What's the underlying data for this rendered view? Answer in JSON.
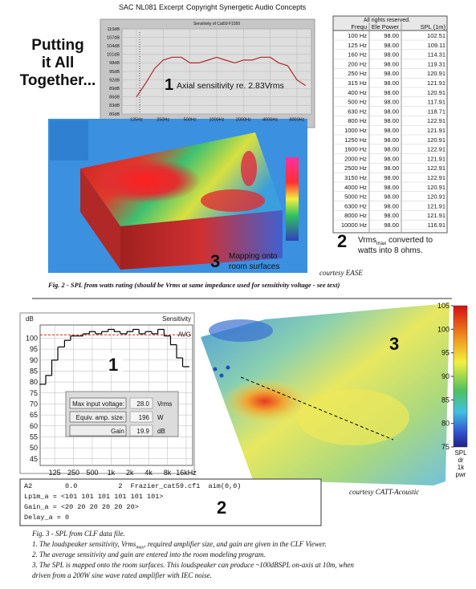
{
  "header": {
    "left": "SAC NL081 Excerpt",
    "right": "Copyright Synergetic Audio Concepts"
  },
  "headline": [
    "Putting",
    "it All",
    "Together..."
  ],
  "fig2": {
    "sensitivity_chart": {
      "type": "line",
      "title": "Sensitivity of Cat59 F1550",
      "log_x": true,
      "grid": true,
      "color": "#b0282c",
      "x": [
        125,
        160,
        200,
        250,
        315,
        400,
        500,
        630,
        800,
        1000,
        1250,
        1600,
        2000,
        2500,
        3150,
        4000,
        5000,
        6300,
        8000,
        10000
      ],
      "values": [
        86,
        91,
        96,
        99,
        100,
        100,
        98,
        98,
        99,
        100,
        99,
        98,
        99,
        99,
        100,
        100,
        98,
        97,
        92,
        90
      ],
      "xlim": [
        86,
        11650
      ],
      "xticks": [
        {
          "value": 125,
          "label": "125Hz"
        },
        {
          "value": 250,
          "label": "250Hz"
        },
        {
          "value": 500,
          "label": "500Hz"
        },
        {
          "value": 1000,
          "label": "1000Hz"
        },
        {
          "value": 2000,
          "label": "2000Hz"
        },
        {
          "value": 4000,
          "label": "4000Hz"
        },
        {
          "value": 8000,
          "label": "8000Hz"
        }
      ],
      "ylim": [
        80,
        110
      ],
      "yticks": [
        {
          "value": 80,
          "label": "80dB"
        },
        {
          "value": 83,
          "label": "83dB"
        },
        {
          "value": 86,
          "label": "86dB"
        },
        {
          "value": 89,
          "label": "89dB"
        },
        {
          "value": 92,
          "label": "92dB"
        },
        {
          "value": 95,
          "label": "95dB"
        },
        {
          "value": 98,
          "label": "98dB"
        },
        {
          "value": 101,
          "label": "101dB"
        },
        {
          "value": 104,
          "label": "104dB"
        },
        {
          "value": 107,
          "label": "107dB"
        },
        {
          "value": 110,
          "label": "110dB"
        }
      ],
      "annotation_number": "1",
      "annotation": "Axial sensitivity re. 2.83Vrms"
    },
    "table": {
      "note": "All rights reserved.",
      "columns": [
        "Frequ",
        "Ele Power",
        "SPL (1m)"
      ],
      "rows": [
        [
          "100 Hz",
          "98.00",
          "102.51"
        ],
        [
          "125 Hz",
          "98.00",
          "109.11"
        ],
        [
          "160 Hz",
          "98.00",
          "114.31"
        ],
        [
          "200 Hz",
          "98.00",
          "119.31"
        ],
        [
          "250 Hz",
          "98.00",
          "120.91"
        ],
        [
          "315 Hz",
          "98.00",
          "121.91"
        ],
        [
          "400 Hz",
          "98.00",
          "120.91"
        ],
        [
          "500 Hz",
          "98.00",
          "117.91"
        ],
        [
          "630 Hz",
          "98.00",
          "118.71"
        ],
        [
          "800 Hz",
          "98.00",
          "122.91"
        ],
        [
          "1000 Hz",
          "98.00",
          "121.91"
        ],
        [
          "1250 Hz",
          "98.00",
          "120.91"
        ],
        [
          "1600 Hz",
          "98.00",
          "122.91"
        ],
        [
          "2000 Hz",
          "98.00",
          "121.91"
        ],
        [
          "2500 Hz",
          "98.00",
          "122.91"
        ],
        [
          "3150 Hz",
          "98.00",
          "122.91"
        ],
        [
          "4000 Hz",
          "98.00",
          "120.91"
        ],
        [
          "5000 Hz",
          "98.00",
          "120.91"
        ],
        [
          "6300 Hz",
          "98.00",
          "121.91"
        ],
        [
          "8000 Hz",
          "98.00",
          "121.91"
        ],
        [
          "10000 Hz",
          "98.00",
          "116.91"
        ]
      ]
    },
    "note2": {
      "number": "2",
      "line1": "Vrms",
      "subscript": "max",
      "line1_end": " converted to",
      "line2": "watts into 8 ohms."
    },
    "note3": {
      "number": "3",
      "line1": "Mapping onto",
      "line2": "room surfaces"
    },
    "credit": "courtesy EASE",
    "caption": "Fig. 2 - SPL from watts rating (should be Vrms at same impedance used for sensitivity voltage - see text)"
  },
  "fig3": {
    "clf_chart": {
      "type": "line",
      "step": true,
      "log_x": true,
      "grid": true,
      "color": "#000000",
      "y_label": "dB",
      "title": "Sensitivity",
      "number": "1",
      "x": [
        80,
        100,
        125,
        160,
        200,
        250,
        315,
        400,
        500,
        630,
        800,
        1000,
        1250,
        1600,
        2000,
        2500,
        3150,
        4000,
        5000,
        6300,
        8000,
        10000,
        12500,
        16000
      ],
      "values": [
        79,
        83,
        90,
        96,
        99,
        101,
        101,
        102,
        103,
        102,
        103,
        104,
        103,
        102,
        103,
        104,
        102,
        103,
        102,
        104,
        101,
        97,
        91,
        87
      ],
      "xlim": [
        73,
        20300
      ],
      "xticks": [
        125,
        250,
        500,
        {
          "value": 1000,
          "label": "1k"
        },
        {
          "value": 2000,
          "label": "2k"
        },
        {
          "value": 4000,
          "label": "4k"
        },
        {
          "value": 8000,
          "label": "8k"
        },
        {
          "value": 16000,
          "label": "16kHz"
        }
      ],
      "ylim": [
        42,
        106
      ],
      "yticks": [
        45,
        50,
        55,
        60,
        65,
        70,
        75,
        80,
        85,
        90,
        95,
        100
      ],
      "reference": {
        "value": 101.5,
        "label": "AVG"
      }
    },
    "amp_panel": {
      "rows": [
        {
          "label": "Max input voltage:",
          "value": "28.0",
          "unit": "Vrms"
        },
        {
          "label": "Equiv. amp. size:",
          "value": "196",
          "unit": "W"
        },
        {
          "label": "Gain",
          "value": "19.9",
          "unit": "dB"
        }
      ]
    },
    "spl_map": {
      "number": "3",
      "credit": "courtesy CATT-Acoustic",
      "colorbar": {
        "lim": [
          75,
          105
        ],
        "ticks": [
          75,
          80,
          85,
          90,
          95,
          100,
          105
        ],
        "labels": [
          "SPL",
          "dr",
          "1k",
          "pwr"
        ]
      }
    },
    "code": {
      "number": "2",
      "lines": [
        "A2        0.0          2  Frazier_cat59.cf1  aim(0,0)",
        "Lp1m_a = <101 101 101 101 101 101>",
        "Gain_a = <20 20 20 20 20 20>",
        "Delay_a = 0"
      ]
    },
    "caption": {
      "title": "Fig. 3 - SPL from CLF data file.",
      "line1_start": "1. The loudspeaker sensitivity, Vrms",
      "line1_sub": "max",
      "line1_end": ", required amplifier size, and gain are given in the CLF Viewer.",
      "line2": "2. The average sensitivity and gain are entered into the room modeling program.",
      "line3": "3. The SPL is mapped onto the room surfaces. This loudspeaker can produce ~100dBSPL on-axis at 10m, when",
      "line4": "driven from a 200W sine wave rated amplifier with IEC noise."
    }
  }
}
